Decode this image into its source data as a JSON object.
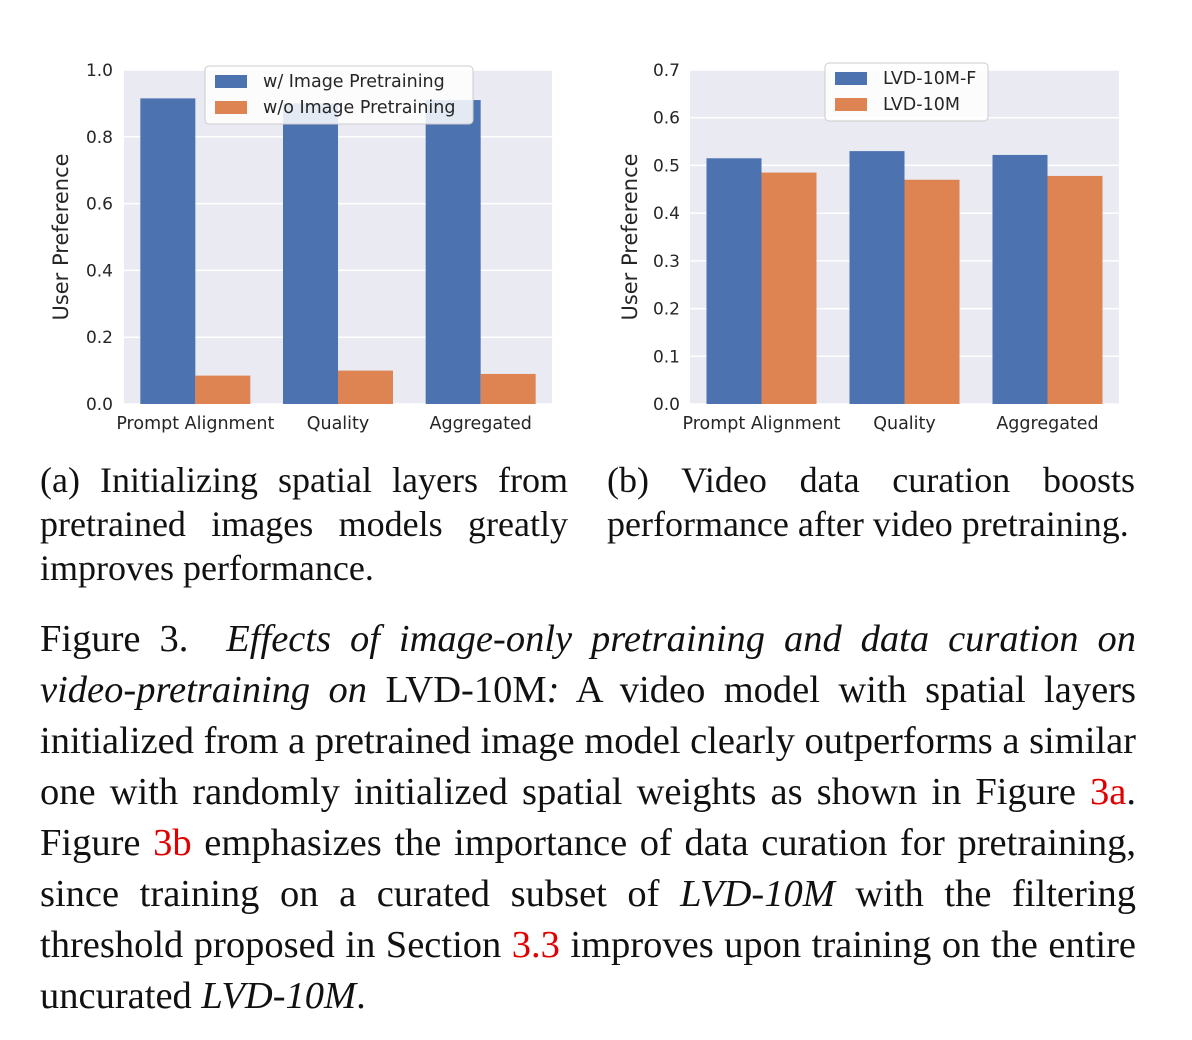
{
  "colors": {
    "series1": "#4c72b0",
    "series2": "#dd8452",
    "plot_bg": "#eaeaf2",
    "grid": "#ffffff",
    "link": "#e00000"
  },
  "chart_data": [
    {
      "id": "a",
      "type": "bar",
      "categories": [
        "Prompt Alignment",
        "Quality",
        "Aggregated"
      ],
      "series": [
        {
          "name": "w/ Image Pretraining",
          "values": [
            0.915,
            0.9,
            0.91
          ]
        },
        {
          "name": "w/o Image Pretraining",
          "values": [
            0.085,
            0.1,
            0.09
          ]
        }
      ],
      "ylabel": "User Preference",
      "ylim": [
        0,
        1.0
      ],
      "yticks": [
        "0.0",
        "0.2",
        "0.4",
        "0.6",
        "0.8",
        "1.0"
      ],
      "legend": "top-center",
      "grid": true
    },
    {
      "id": "b",
      "type": "bar",
      "categories": [
        "Prompt Alignment",
        "Quality",
        "Aggregated"
      ],
      "series": [
        {
          "name": "LVD-10M-F",
          "values": [
            0.515,
            0.53,
            0.522
          ]
        },
        {
          "name": "LVD-10M",
          "values": [
            0.485,
            0.47,
            0.478
          ]
        }
      ],
      "ylabel": "User Preference",
      "ylim": [
        0,
        0.7
      ],
      "yticks": [
        "0.0",
        "0.1",
        "0.2",
        "0.3",
        "0.4",
        "0.5",
        "0.6",
        "0.7"
      ],
      "legend": "top-center",
      "grid": true
    }
  ],
  "subcaption_a": {
    "label": "(a)",
    "text": "Initializing spatial layers from pretrained images models greatly improves performance."
  },
  "subcaption_b": {
    "label": "(b)",
    "text": "Video data curation boosts performance after video pretraining."
  },
  "caption": {
    "label": "Figure 3.",
    "title_a": "Effects of image-only pretraining and data curation on video-pretraining on",
    "title_b": "LVD-10M",
    "title_c": ":",
    "body_1": "A video model with spatial layers initialized from a pretrained image model clearly outperforms a similar one with randomly initialized spatial weights as shown in Figure",
    "ref_1": "3a",
    "body_2": ". Figure",
    "ref_2": "3b",
    "body_3": "emphasizes the importance of data curation for pretraining, since training on a curated subset of",
    "it_1": "LVD-10M",
    "body_4": "with the filtering threshold proposed in Section",
    "ref_3": "3.3",
    "body_5": "improves upon training on the entire uncurated",
    "it_2": "LVD-10M",
    "body_6": "."
  }
}
